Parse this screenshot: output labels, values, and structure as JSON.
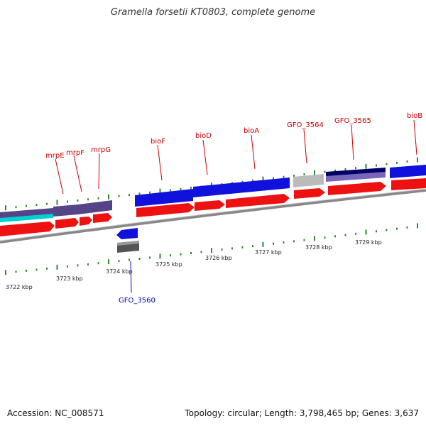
{
  "title": "Gramella forsetii KT0803, complete genome",
  "accession_text": "Accession: NC_008571",
  "summary_text": "Topology: circular; Length: 3,798,465 bp; Genes: 3,637",
  "colors": {
    "backbone": "#8a8a8a",
    "tick": "#2e8b2e",
    "gene_label_top": "#cc0000",
    "gene_label_bottom": "#0000aa",
    "cds_red": "#ee1111",
    "blue": "#1111dd",
    "navy": "#000066",
    "purple": "#554488",
    "cyan": "#00cccc",
    "gray_light": "#bbbbbb",
    "gray_dark": "#555555"
  },
  "scale": {
    "unit": "kbp",
    "labels": [
      "3722 kbp",
      "3723 kbp",
      "3724 kbp",
      "3725 kbp",
      "3726 kbp",
      "3727 kbp",
      "3728 kbp",
      "3729 kbp"
    ]
  },
  "gene_labels_top": [
    "mrpE",
    "mrpF",
    "mrpG",
    "bioF",
    "bioD",
    "bioA",
    "GFO_3564",
    "GFO_3565",
    "bioB"
  ],
  "gene_labels_bottom": [
    "GFO_3560"
  ]
}
